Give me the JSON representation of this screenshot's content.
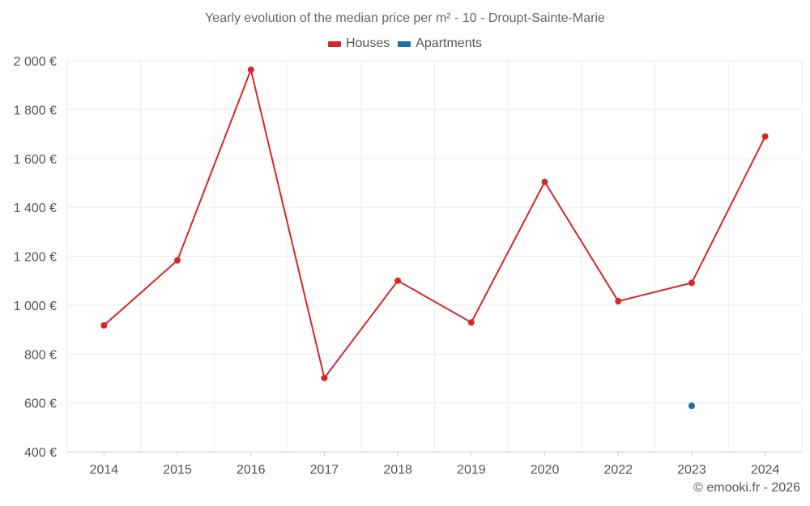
{
  "chart_data": {
    "type": "line",
    "title": "Yearly evolution of the median price per m² - 10 - Droupt-Sainte-Marie",
    "categories": [
      "2014",
      "2015",
      "2016",
      "2017",
      "2018",
      "2019",
      "2020",
      "2022",
      "2023",
      "2024"
    ],
    "series": [
      {
        "name": "Houses",
        "color": "#d62728",
        "values": [
          917,
          1183,
          1963,
          702,
          1100,
          929,
          1504,
          1016,
          1091,
          1690
        ]
      },
      {
        "name": "Apartments",
        "color": "#1f6fa8",
        "values": [
          null,
          null,
          null,
          null,
          null,
          null,
          null,
          null,
          588,
          null
        ]
      }
    ],
    "ylim": [
      400,
      2000
    ],
    "yticks": [
      400,
      600,
      800,
      1000,
      1200,
      1400,
      1600,
      1800,
      2000
    ],
    "ytick_labels": [
      "400 €",
      "600 €",
      "800 €",
      "1 000 €",
      "1 200 €",
      "1 400 €",
      "1 600 €",
      "1 800 €",
      "2 000 €"
    ],
    "xlabel": "",
    "ylabel": "",
    "grid": true,
    "legend_position": "top-center"
  },
  "credit": "© emooki.fr - 2026"
}
